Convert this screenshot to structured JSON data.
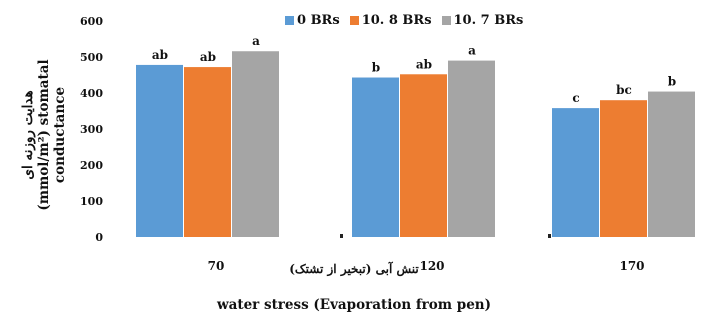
{
  "chart_data": {
    "type": "bar",
    "categories": [
      "70",
      "120",
      "170"
    ],
    "series": [
      {
        "name": "0 BRs",
        "color": "#5b9bd5",
        "values": [
          478,
          443,
          358
        ],
        "labels": [
          "ab",
          "b",
          "c"
        ]
      },
      {
        "name": "10. 8 BRs",
        "color": "#ed7d31",
        "values": [
          472,
          452,
          380
        ],
        "labels": [
          "ab",
          "ab",
          "bc"
        ]
      },
      {
        "name": "10. 7 BRs",
        "color": "#a5a5a5",
        "values": [
          516,
          490,
          404
        ],
        "labels": [
          "a",
          "a",
          "b"
        ]
      }
    ],
    "yticks": [
      "0",
      "100",
      "200",
      "300",
      "400",
      "500",
      "600"
    ],
    "ylim": [
      0,
      600
    ],
    "ylabel_fa": "هدایت روزنه ای",
    "ylabel_en": "(mmol/m²) stomatal conductance",
    "xlabel_fa": "تنش آبی (تبخیر از تشتک)",
    "xlabel_en": "water stress (Evaporation from pen)",
    "legend_position": "top",
    "grid": false
  }
}
